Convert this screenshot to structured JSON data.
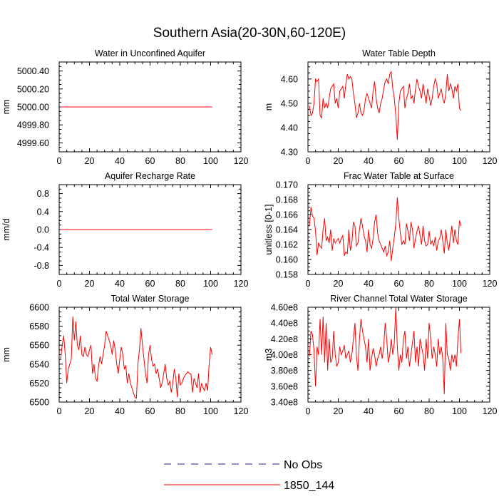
{
  "title": "Southern Asia(20-30N,60-120E)",
  "legend": {
    "entries": [
      {
        "label": "No Obs",
        "color": "#1f1f8f",
        "style": "dashed"
      },
      {
        "label": "1850_144",
        "color": "#ff0000",
        "style": "solid"
      }
    ]
  },
  "chart_data": [
    {
      "type": "line",
      "title": "Water in Unconfined Aquifer",
      "ylabel": "mm",
      "xlim": [
        0,
        120
      ],
      "ylim": [
        4999.5,
        5000.5
      ],
      "xticks": [
        0,
        20,
        40,
        60,
        80,
        100,
        120
      ],
      "yticks": [
        4999.6,
        4999.8,
        5000.0,
        5000.2,
        5000.4
      ],
      "ytick_labels": [
        "4999.60",
        "4999.80",
        "5000.00",
        "5000.20",
        "5000.40"
      ],
      "series": [
        {
          "name": "1850_144",
          "x_start": 1,
          "values": [
            5000.0,
            5000.0
          ]
        }
      ]
    },
    {
      "type": "line",
      "title": "Water Table Depth",
      "ylabel": "m",
      "xlim": [
        0,
        120
      ],
      "ylim": [
        4.3,
        4.67
      ],
      "xticks": [
        0,
        20,
        40,
        60,
        80,
        100,
        120
      ],
      "yticks": [
        4.3,
        4.4,
        4.5,
        4.6
      ],
      "ytick_labels": [
        "4.30",
        "4.40",
        "4.50",
        "4.60"
      ],
      "series": [
        {
          "name": "1850_144",
          "x_start": 1,
          "values": [
            4.49,
            4.45,
            4.46,
            4.5,
            4.6,
            4.59,
            4.6,
            4.45,
            4.44,
            4.52,
            4.48,
            4.5,
            4.48,
            4.52,
            4.56,
            4.57,
            4.58,
            4.5,
            4.52,
            4.48,
            4.55,
            4.56,
            4.57,
            4.52,
            4.58,
            4.62,
            4.6,
            4.61,
            4.6,
            4.54,
            4.5,
            4.44,
            4.46,
            4.5,
            4.46,
            4.45,
            4.47,
            4.52,
            4.54,
            4.52,
            4.5,
            4.48,
            4.55,
            4.59,
            4.52,
            4.48,
            4.46,
            4.5,
            4.52,
            4.56,
            4.59,
            4.6,
            4.58,
            4.62,
            4.63,
            4.56,
            4.52,
            4.45,
            4.35,
            4.5,
            4.55,
            4.56,
            4.57,
            4.48,
            4.52,
            4.54,
            4.58,
            4.52,
            4.53,
            4.5,
            4.56,
            4.6,
            4.57,
            4.55,
            4.52,
            4.58,
            4.54,
            4.5,
            4.56,
            4.53,
            4.49,
            4.52,
            4.57,
            4.6,
            4.58,
            4.52,
            4.54,
            4.56,
            4.52,
            4.5,
            4.54,
            4.62,
            4.55,
            4.58,
            4.56,
            4.52,
            4.57,
            4.55,
            4.58,
            4.48,
            4.47
          ]
        }
      ]
    },
    {
      "type": "line",
      "title": "Aquifer Recharge Rate",
      "ylabel": "mm/d",
      "xlim": [
        0,
        120
      ],
      "ylim": [
        -1.0,
        1.0
      ],
      "xticks": [
        0,
        20,
        40,
        60,
        80,
        100,
        120
      ],
      "yticks": [
        -0.8,
        -0.4,
        0.0,
        0.4,
        0.8
      ],
      "ytick_labels": [
        "-0.8",
        "-0.4",
        "0.0",
        "0.4",
        "0.8"
      ],
      "series": [
        {
          "name": "1850_144",
          "x_start": 1,
          "values": [
            0.0,
            0.0
          ]
        }
      ]
    },
    {
      "type": "line",
      "title": "Frac Water Table at Surface",
      "ylabel": "unitless [0-1]",
      "xlim": [
        0,
        120
      ],
      "ylim": [
        0.158,
        0.17
      ],
      "xticks": [
        0,
        20,
        40,
        60,
        80,
        100,
        120
      ],
      "yticks": [
        0.158,
        0.16,
        0.162,
        0.164,
        0.166,
        0.168,
        0.17
      ],
      "ytick_labels": [
        "0.158",
        "0.160",
        "0.162",
        "0.164",
        "0.166",
        "0.168",
        "0.170"
      ],
      "series": [
        {
          "name": "1850_144",
          "x_start": 1,
          "values": [
            0.1645,
            0.167,
            0.1658,
            0.1655,
            0.1638,
            0.1606,
            0.1622,
            0.1618,
            0.1615,
            0.164,
            0.1655,
            0.1625,
            0.163,
            0.1622,
            0.164,
            0.1612,
            0.1628,
            0.1622,
            0.1625,
            0.1628,
            0.1622,
            0.1628,
            0.1632,
            0.1605,
            0.161,
            0.1608,
            0.164,
            0.1612,
            0.1622,
            0.165,
            0.1645,
            0.1618,
            0.1622,
            0.164,
            0.1655,
            0.1645,
            0.1632,
            0.1625,
            0.161,
            0.164,
            0.162,
            0.1615,
            0.1628,
            0.165,
            0.166,
            0.1635,
            0.1625,
            0.162,
            0.1615,
            0.161,
            0.1618,
            0.1605,
            0.161,
            0.1625,
            0.1598,
            0.1615,
            0.163,
            0.1648,
            0.1683,
            0.1655,
            0.1635,
            0.162,
            0.1625,
            0.162,
            0.1648,
            0.1638,
            0.1625,
            0.165,
            0.164,
            0.1615,
            0.1628,
            0.1638,
            0.1645,
            0.1632,
            0.162,
            0.1645,
            0.1625,
            0.1618,
            0.162,
            0.1638,
            0.162,
            0.1625,
            0.1618,
            0.163,
            0.1612,
            0.1625,
            0.1628,
            0.164,
            0.1625,
            0.1608,
            0.164,
            0.1622,
            0.1612,
            0.163,
            0.1645,
            0.1622,
            0.164,
            0.1625,
            0.162,
            0.1652,
            0.1645
          ]
        }
      ]
    },
    {
      "type": "line",
      "title": "Total Water Storage",
      "ylabel": "mm",
      "xlim": [
        0,
        120
      ],
      "ylim": [
        6500,
        6600
      ],
      "xticks": [
        0,
        20,
        40,
        60,
        80,
        100,
        120
      ],
      "yticks": [
        6500,
        6520,
        6540,
        6560,
        6580,
        6600
      ],
      "ytick_labels": [
        "6500",
        "6520",
        "6540",
        "6560",
        "6580",
        "6600"
      ],
      "series": [
        {
          "name": "1850_144",
          "x_start": 1,
          "values": [
            6545,
            6560,
            6570,
            6550,
            6520,
            6535,
            6540,
            6545,
            6590,
            6565,
            6585,
            6560,
            6555,
            6570,
            6550,
            6548,
            6558,
            6550,
            6548,
            6555,
            6560,
            6530,
            6540,
            6525,
            6522,
            6538,
            6548,
            6540,
            6550,
            6560,
            6575,
            6570,
            6565,
            6560,
            6550,
            6565,
            6555,
            6540,
            6530,
            6545,
            6558,
            6550,
            6535,
            6538,
            6520,
            6530,
            6520,
            6515,
            6510,
            6505,
            6504,
            6540,
            6555,
            6578,
            6560,
            6545,
            6530,
            6520,
            6550,
            6560,
            6545,
            6538,
            6540,
            6530,
            6535,
            6525,
            6515,
            6520,
            6530,
            6540,
            6525,
            6518,
            6522,
            6510,
            6520,
            6535,
            6525,
            6505,
            6530,
            6518,
            6520,
            6525,
            6528,
            6530,
            6532,
            6530,
            6530,
            6510,
            6525,
            6520,
            6515,
            6530,
            6510,
            6520,
            6515,
            6512,
            6520,
            6512,
            6540,
            6558,
            6550
          ]
        }
      ]
    },
    {
      "type": "line",
      "title": "River Channel Total Water Storage",
      "ylabel": "m3",
      "xlim": [
        0,
        120
      ],
      "ylim": [
        340000000,
        460000000
      ],
      "xticks": [
        0,
        20,
        40,
        60,
        80,
        100,
        120
      ],
      "yticks": [
        340000000,
        360000000,
        380000000,
        400000000,
        420000000,
        440000000,
        460000000
      ],
      "ytick_labels": [
        "3.40e8",
        "3.60e8",
        "3.80e8",
        "4.00e8",
        "4.20e8",
        "4.40e8",
        "4.60e8"
      ],
      "series": [
        {
          "name": "1850_144",
          "x_start": 1,
          "values": [
            398000000,
            430000000,
            425000000,
            405000000,
            360000000,
            410000000,
            400000000,
            445000000,
            400000000,
            448000000,
            390000000,
            440000000,
            380000000,
            420000000,
            390000000,
            395000000,
            430000000,
            400000000,
            385000000,
            390000000,
            410000000,
            400000000,
            405000000,
            412000000,
            395000000,
            400000000,
            405000000,
            390000000,
            400000000,
            420000000,
            440000000,
            398000000,
            380000000,
            420000000,
            445000000,
            430000000,
            420000000,
            410000000,
            390000000,
            420000000,
            380000000,
            395000000,
            408000000,
            400000000,
            385000000,
            395000000,
            400000000,
            410000000,
            395000000,
            410000000,
            440000000,
            420000000,
            390000000,
            400000000,
            420000000,
            400000000,
            415000000,
            460000000,
            410000000,
            380000000,
            400000000,
            390000000,
            420000000,
            430000000,
            395000000,
            410000000,
            385000000,
            400000000,
            415000000,
            430000000,
            390000000,
            410000000,
            385000000,
            420000000,
            410000000,
            400000000,
            380000000,
            420000000,
            395000000,
            440000000,
            420000000,
            395000000,
            410000000,
            400000000,
            385000000,
            420000000,
            400000000,
            410000000,
            395000000,
            350000000,
            440000000,
            400000000,
            395000000,
            380000000,
            400000000,
            390000000,
            400000000,
            385000000,
            420000000,
            445000000,
            402000000
          ]
        }
      ]
    }
  ]
}
